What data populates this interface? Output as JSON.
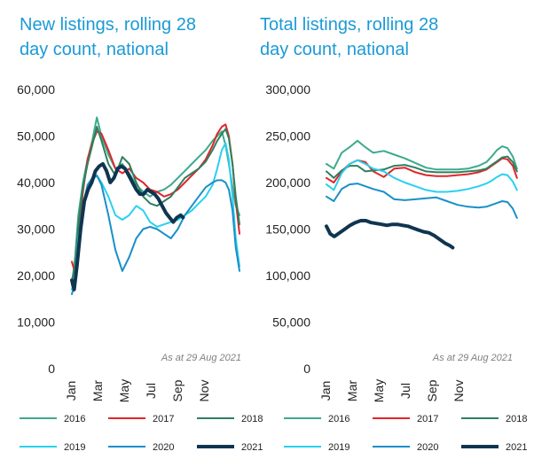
{
  "colors": {
    "2016": "#3daa8c",
    "2017": "#e0262a",
    "2018": "#2f7f5f",
    "2019": "#2ad0ef",
    "2020": "#1a8fc9",
    "2021": "#0f3550",
    "title": "#1a9ad6"
  },
  "chart_data": [
    {
      "type": "line",
      "title": "New listings, rolling 28 day count, national",
      "title_lines": [
        "New listings, rolling 28",
        "day count, national"
      ],
      "annotation": "As at 29 Aug 2021",
      "x_ticks": [
        "Jan",
        "Mar",
        "May",
        "Jul",
        "Sep",
        "Nov"
      ],
      "y_ticks": [
        "0",
        "10,000",
        "20,000",
        "30,000",
        "40,000",
        "50,000",
        "60,000"
      ],
      "ylim": [
        0,
        60000
      ],
      "x_unit": "day of year",
      "legend": [
        "2016",
        "2017",
        "2018",
        "2019",
        "2020",
        "2021"
      ],
      "series": [
        {
          "name": "2016",
          "x": [
            1,
            8,
            15,
            25,
            35,
            45,
            55,
            65,
            80,
            95,
            110,
            125,
            140,
            155,
            170,
            185,
            200,
            215,
            230,
            245,
            260,
            275,
            290,
            305,
            315,
            325,
            333,
            340,
            348,
            355,
            363
          ],
          "y": [
            18000,
            24000,
            33000,
            40000,
            45000,
            49000,
            54000,
            50000,
            46000,
            43000,
            44000,
            42000,
            39500,
            38000,
            37000,
            38000,
            38500,
            39500,
            41000,
            42500,
            44000,
            45500,
            47000,
            49000,
            50000,
            51000,
            48000,
            44000,
            39000,
            35000,
            33000
          ]
        },
        {
          "name": "2017",
          "x": [
            1,
            8,
            15,
            25,
            35,
            45,
            55,
            65,
            80,
            95,
            110,
            125,
            140,
            155,
            170,
            185,
            200,
            215,
            230,
            245,
            260,
            275,
            290,
            305,
            315,
            325,
            333,
            340,
            348,
            355,
            363
          ],
          "y": [
            23000,
            20500,
            28000,
            38000,
            45000,
            48500,
            51000,
            50500,
            47000,
            43000,
            42000,
            43000,
            41000,
            40000,
            38500,
            38000,
            37000,
            37500,
            38500,
            40000,
            41500,
            43000,
            45000,
            48000,
            50500,
            52000,
            52500,
            50000,
            44000,
            36000,
            29000
          ]
        },
        {
          "name": "2018",
          "x": [
            1,
            8,
            15,
            25,
            35,
            45,
            55,
            65,
            80,
            95,
            110,
            125,
            140,
            155,
            170,
            185,
            200,
            215,
            230,
            245,
            260,
            275,
            290,
            305,
            315,
            325,
            333,
            340,
            348,
            355,
            363
          ],
          "y": [
            19000,
            22000,
            31000,
            39000,
            44000,
            48000,
            52000,
            49000,
            44000,
            41500,
            45500,
            44000,
            40000,
            37000,
            35500,
            35000,
            36000,
            37000,
            39000,
            41000,
            42000,
            43000,
            44500,
            47000,
            49000,
            50500,
            51500,
            49500,
            44000,
            37000,
            31000
          ]
        },
        {
          "name": "2019",
          "x": [
            1,
            8,
            15,
            25,
            35,
            45,
            55,
            65,
            80,
            95,
            110,
            125,
            140,
            155,
            170,
            185,
            200,
            215,
            230,
            245,
            260,
            275,
            290,
            305,
            315,
            325,
            333,
            340,
            348,
            355,
            363
          ],
          "y": [
            17000,
            20000,
            28000,
            35000,
            39000,
            40500,
            41500,
            40000,
            37000,
            33000,
            32000,
            33000,
            35000,
            34000,
            31500,
            30500,
            31000,
            31500,
            32000,
            33000,
            34000,
            35500,
            37000,
            39500,
            43000,
            47000,
            48500,
            45000,
            37000,
            28000,
            22000
          ]
        },
        {
          "name": "2020",
          "x": [
            1,
            8,
            15,
            25,
            35,
            45,
            55,
            65,
            80,
            95,
            110,
            125,
            140,
            155,
            170,
            185,
            200,
            215,
            230,
            245,
            260,
            275,
            290,
            305,
            315,
            325,
            333,
            340,
            348,
            355,
            363
          ],
          "y": [
            16000,
            18500,
            27000,
            35000,
            39500,
            41000,
            41500,
            39500,
            33000,
            25500,
            21000,
            24000,
            28000,
            30000,
            30500,
            30000,
            29000,
            28000,
            30000,
            33000,
            35000,
            37000,
            39000,
            40000,
            40500,
            40500,
            40000,
            38500,
            34000,
            26000,
            21000
          ]
        },
        {
          "name": "2021",
          "x": [
            1,
            6,
            12,
            20,
            28,
            36,
            44,
            52,
            60,
            68,
            76,
            84,
            92,
            100,
            108,
            116,
            124,
            132,
            140,
            148,
            156,
            164,
            172,
            180,
            188,
            196,
            204,
            212,
            220,
            228,
            236,
            241
          ],
          "y": [
            19000,
            17000,
            22000,
            30000,
            36000,
            38500,
            40000,
            42500,
            43500,
            44000,
            42500,
            40000,
            41000,
            43000,
            43500,
            43000,
            41500,
            40000,
            38500,
            37500,
            37500,
            38500,
            38000,
            37500,
            36500,
            35000,
            33500,
            32500,
            31500,
            32500,
            33000,
            32500
          ]
        }
      ]
    },
    {
      "type": "line",
      "title": "Total listings, rolling 28 day count, national",
      "title_lines": [
        "Total listings, rolling 28",
        "day count, national"
      ],
      "annotation": "As at 29 Aug 2021",
      "x_ticks": [
        "Jan",
        "Mar",
        "May",
        "Jul",
        "Sep",
        "Nov"
      ],
      "y_ticks": [
        "0",
        "50,000",
        "100,000",
        "150,000",
        "200,000",
        "250,000",
        "300,000"
      ],
      "ylim": [
        0,
        300000
      ],
      "x_unit": "day of year",
      "legend": [
        "2016",
        "2017",
        "2018",
        "2019",
        "2020",
        "2021"
      ],
      "series": [
        {
          "name": "2016",
          "x": [
            1,
            15,
            30,
            45,
            60,
            75,
            90,
            110,
            130,
            150,
            170,
            190,
            210,
            230,
            250,
            270,
            290,
            305,
            315,
            325,
            335,
            345,
            355,
            363
          ],
          "y": [
            220000,
            215000,
            232000,
            238000,
            245000,
            238000,
            232000,
            234000,
            230000,
            226000,
            221000,
            216000,
            214000,
            214000,
            214000,
            215000,
            218000,
            222000,
            228000,
            235000,
            239000,
            237000,
            228000,
            215000
          ]
        },
        {
          "name": "2017",
          "x": [
            1,
            15,
            30,
            45,
            60,
            75,
            90,
            110,
            130,
            150,
            170,
            190,
            210,
            230,
            250,
            270,
            290,
            305,
            315,
            325,
            335,
            345,
            355,
            363
          ],
          "y": [
            205000,
            200000,
            212000,
            220000,
            224000,
            222000,
            212000,
            206000,
            215000,
            216000,
            211000,
            208000,
            207000,
            207000,
            208000,
            209000,
            211000,
            214000,
            218000,
            222000,
            226000,
            225000,
            218000,
            205000
          ]
        },
        {
          "name": "2018",
          "x": [
            1,
            15,
            30,
            45,
            60,
            75,
            90,
            110,
            130,
            150,
            170,
            190,
            210,
            230,
            250,
            270,
            290,
            305,
            315,
            325,
            335,
            345,
            355,
            363
          ],
          "y": [
            212000,
            205000,
            213000,
            218000,
            218000,
            212000,
            213000,
            214000,
            218000,
            219000,
            216000,
            212000,
            211000,
            211000,
            211000,
            212000,
            213000,
            215000,
            219000,
            223000,
            227000,
            228000,
            222000,
            212000
          ]
        },
        {
          "name": "2019",
          "x": [
            1,
            15,
            30,
            45,
            60,
            75,
            90,
            110,
            130,
            150,
            170,
            190,
            210,
            230,
            250,
            270,
            290,
            305,
            315,
            325,
            335,
            345,
            355,
            363
          ],
          "y": [
            198000,
            192000,
            210000,
            220000,
            224000,
            220000,
            215000,
            212000,
            205000,
            200000,
            196000,
            192000,
            190000,
            190000,
            191000,
            193000,
            196000,
            199000,
            202000,
            206000,
            209000,
            208000,
            201000,
            192000
          ]
        },
        {
          "name": "2020",
          "x": [
            1,
            15,
            30,
            45,
            60,
            75,
            90,
            110,
            130,
            150,
            170,
            190,
            210,
            230,
            250,
            270,
            290,
            305,
            315,
            325,
            335,
            345,
            355,
            363
          ],
          "y": [
            185000,
            180000,
            193000,
            198000,
            199000,
            196000,
            193000,
            190000,
            182000,
            181000,
            182000,
            183000,
            184000,
            180000,
            176000,
            174000,
            173000,
            174000,
            176000,
            178000,
            180000,
            179000,
            172000,
            162000
          ]
        },
        {
          "name": "2021",
          "x": [
            1,
            8,
            16,
            26,
            36,
            46,
            56,
            66,
            76,
            86,
            96,
            106,
            116,
            126,
            136,
            146,
            156,
            166,
            176,
            186,
            196,
            206,
            216,
            226,
            236,
            241
          ],
          "y": [
            153000,
            145000,
            142000,
            146000,
            150000,
            154000,
            157000,
            159000,
            159000,
            157000,
            156000,
            155000,
            154000,
            155000,
            155000,
            154000,
            153000,
            151000,
            149000,
            147000,
            146000,
            143000,
            139000,
            135000,
            132000,
            130000
          ]
        }
      ]
    }
  ]
}
